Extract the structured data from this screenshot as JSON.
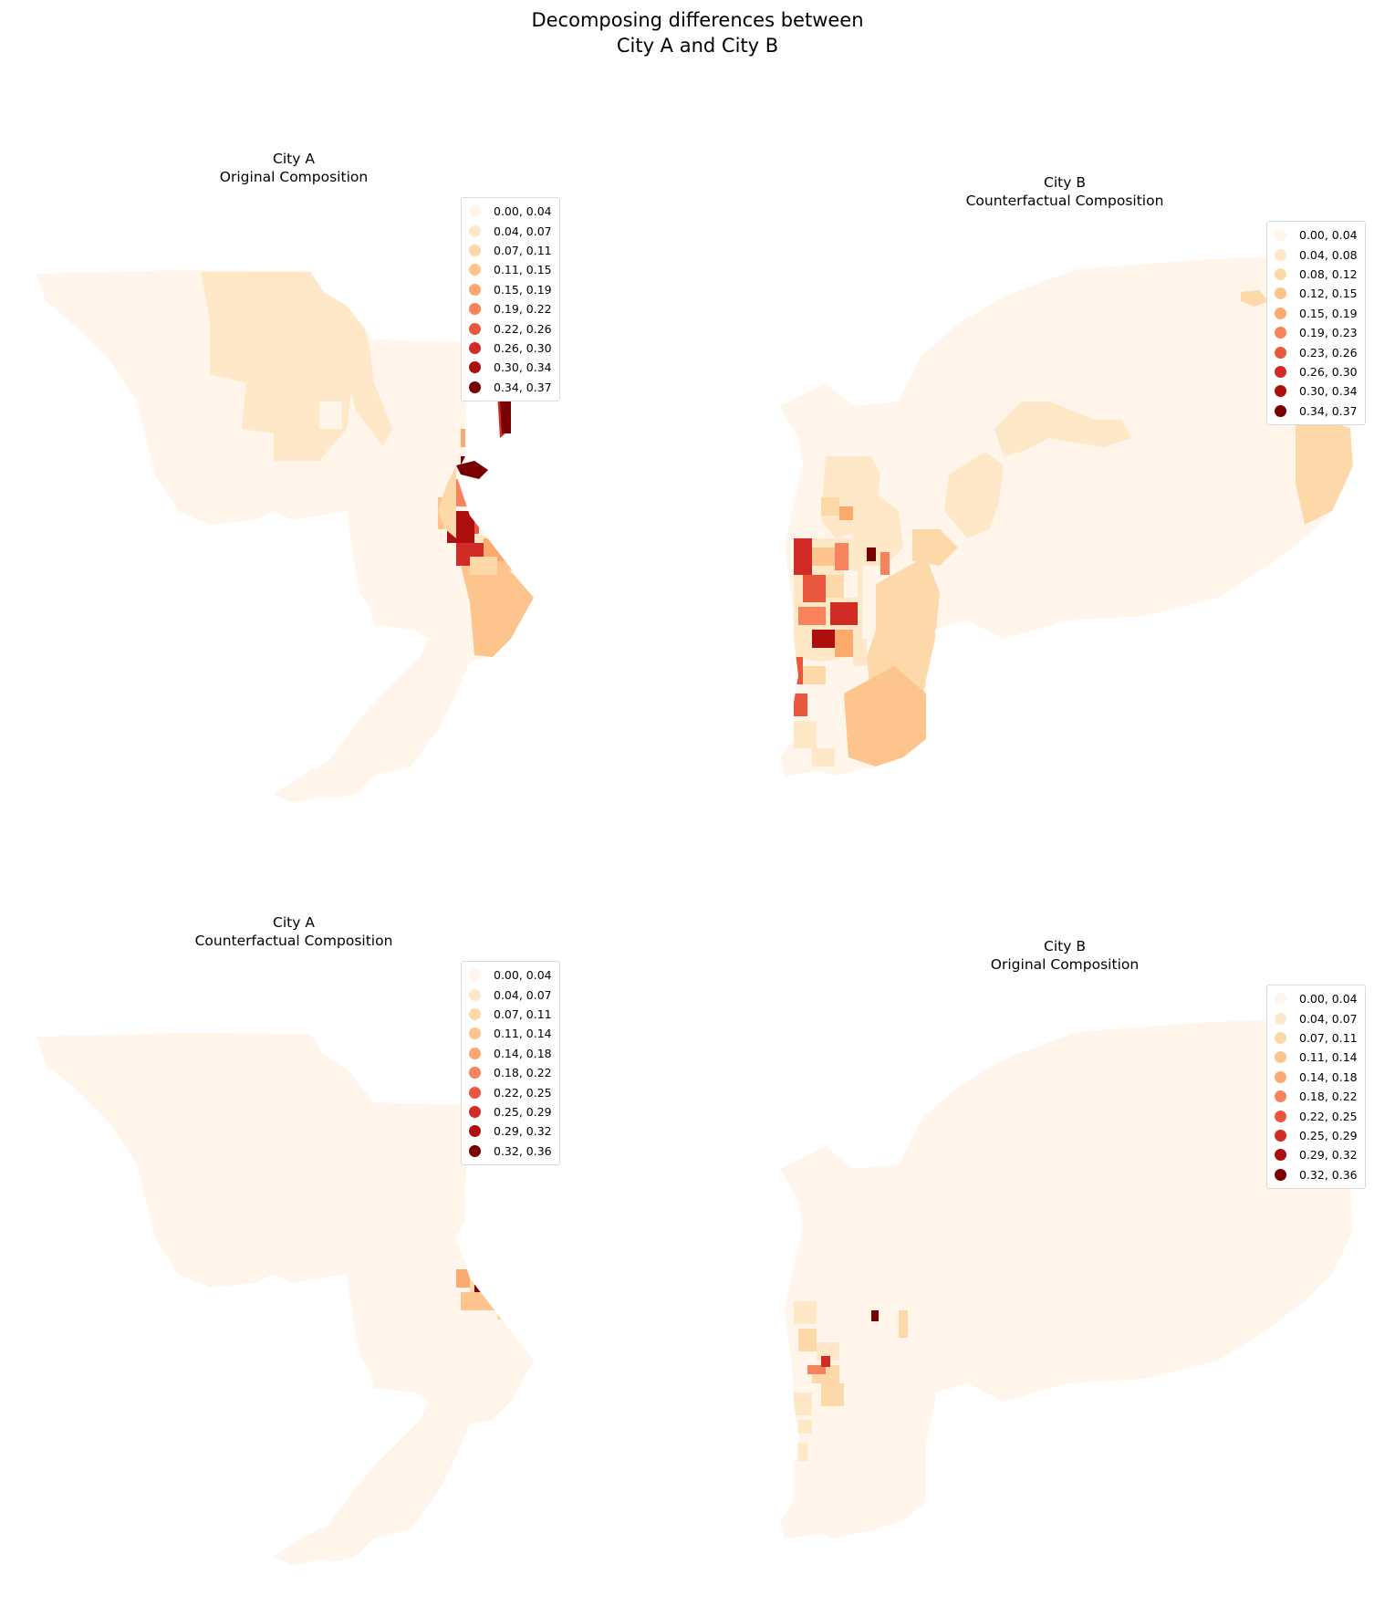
{
  "figure": {
    "title_line1": "Decomposing differences between",
    "title_line2": "City A and City B"
  },
  "colors": {
    "c0": "#fff5eb",
    "c1": "#fee8c8",
    "c2": "#fdd8a8",
    "c3": "#fdc48d",
    "c4": "#fca96e",
    "c5": "#f8825c",
    "c6": "#ea573f",
    "c7": "#d02b24",
    "c8": "#ad0f0f",
    "c9": "#7a0000"
  },
  "panels": [
    {
      "id": "a-original",
      "title_line1": "City A",
      "title_line2": "Original Composition",
      "legend": [
        "0.00, 0.04",
        "0.04, 0.07",
        "0.07, 0.11",
        "0.11, 0.15",
        "0.15, 0.19",
        "0.19, 0.22",
        "0.22, 0.26",
        "0.26, 0.30",
        "0.30, 0.34",
        "0.34, 0.37"
      ]
    },
    {
      "id": "b-counterfactual",
      "title_line1": "City B",
      "title_line2": "Counterfactual Composition",
      "legend": [
        "0.00, 0.04",
        "0.04, 0.08",
        "0.08, 0.12",
        "0.12, 0.15",
        "0.15, 0.19",
        "0.19, 0.23",
        "0.23, 0.26",
        "0.26, 0.30",
        "0.30, 0.34",
        "0.34, 0.37"
      ]
    },
    {
      "id": "a-counterfactual",
      "title_line1": "City A",
      "title_line2": "Counterfactual Composition",
      "legend": [
        "0.00, 0.04",
        "0.04, 0.07",
        "0.07, 0.11",
        "0.11, 0.14",
        "0.14, 0.18",
        "0.18, 0.22",
        "0.22, 0.25",
        "0.25, 0.29",
        "0.29, 0.32",
        "0.32, 0.36"
      ]
    },
    {
      "id": "b-original",
      "title_line1": "City B",
      "title_line2": "Original Composition",
      "legend": [
        "0.00, 0.04",
        "0.04, 0.07",
        "0.07, 0.11",
        "0.11, 0.14",
        "0.14, 0.18",
        "0.18, 0.22",
        "0.22, 0.25",
        "0.25, 0.29",
        "0.29, 0.32",
        "0.32, 0.36"
      ]
    }
  ]
}
